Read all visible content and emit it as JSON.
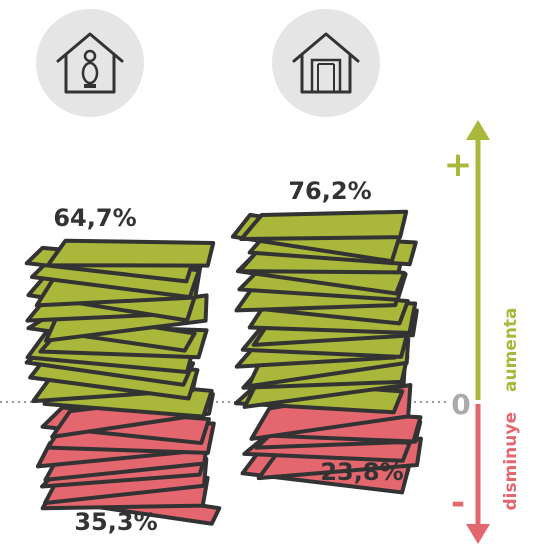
{
  "colors": {
    "increase": "#a9b73a",
    "decrease": "#e46770",
    "outline": "#333333",
    "icon_circle": "#e5e5e5",
    "zero_line": "#999999"
  },
  "icons": [
    "house-with-person-icon",
    "house-with-open-door-icon"
  ],
  "axis": {
    "zero_label": "0",
    "plus_label": "+",
    "minus_label": "-",
    "up_label": "aumenta",
    "down_label": "disminuye"
  },
  "chart_data": {
    "type": "bar",
    "stacked": true,
    "categories": [
      "",
      ""
    ],
    "series": [
      {
        "values": [
          64.7,
          76.2
        ],
        "labels": [
          "64,7%",
          "76,2%"
        ]
      },
      {
        "values": [
          35.3,
          23.8
        ],
        "labels": [
          "35,3%",
          "23,8%"
        ]
      }
    ],
    "ylim": [
      0,
      100
    ],
    "unit": "%"
  }
}
